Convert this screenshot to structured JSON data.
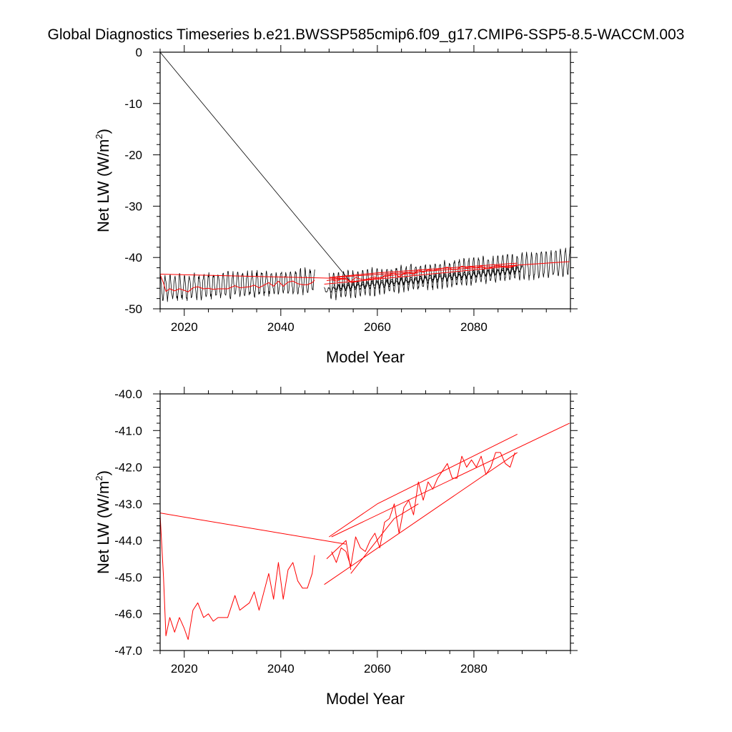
{
  "title": "Global Diagnostics Timeseries b.e21.BWSSP585cmip6.f09_g17.CMIP6-SSP5-8.5-WACCM.003",
  "chart_data": [
    {
      "type": "line",
      "title": "Global Diagnostics Timeseries b.e21.BWSSP585cmip6.f09_g17.CMIP6-SSP5-8.5-WACCM.003",
      "xlabel": "Model Year",
      "ylabel_main": "Net LW (W/m",
      "ylabel_sup": "2",
      "ylabel_end": ")",
      "xlim": [
        2015,
        2100
      ],
      "ylim": [
        -50,
        0
      ],
      "xticks": [
        2020,
        2040,
        2060,
        2080
      ],
      "xtick_labels": [
        "2020",
        "2040",
        "2060",
        "2080"
      ],
      "yticks": [
        0,
        -10,
        -20,
        -30,
        -40,
        -50
      ],
      "ytick_labels": [
        "0",
        "-10",
        "-20",
        "-30",
        "-40",
        "-50"
      ],
      "series": [
        {
          "name": "monthly",
          "color": "#000000",
          "segments": [
            {
              "kind": "seasonal",
              "x0": 2015.1,
              "x1": 2047.0,
              "mean0": -46.0,
              "mean1": -44.6,
              "amp": 2.2,
              "noise": 0.6
            },
            {
              "kind": "line",
              "x": [
                2015.0,
                2054.5
              ],
              "y": [
                0.0,
                -44.8
              ]
            },
            {
              "kind": "seasonal",
              "x0": 2050.0,
              "x1": 2099.9,
              "mean0": -45.6,
              "mean1": -40.8,
              "amp": 2.4,
              "noise": 0.5
            },
            {
              "kind": "seasonal",
              "x0": 2049.0,
              "x1": 2089.0,
              "mean0": -46.4,
              "mean1": -42.6,
              "amp": 0.5,
              "noise": 0.2
            },
            {
              "kind": "seasonal",
              "x0": 2051.0,
              "x1": 2090.0,
              "mean0": -45.8,
              "mean1": -42.2,
              "amp": 0.5,
              "noise": 0.2
            }
          ]
        },
        {
          "name": "annual",
          "color": "#ff0000",
          "segments": [
            {
              "kind": "line",
              "x": [
                2015.0,
                2015.7,
                2016.2,
                2017.0,
                2018.0,
                2019.0,
                2020.0,
                2020.8,
                2021.8,
                2022.8,
                2024.0,
                2025.0,
                2026.0,
                2027.0,
                2028.0,
                2029.0,
                2030.5,
                2031.5,
                2032.5,
                2033.5,
                2034.5,
                2035.5,
                2036.5,
                2037.5,
                2038.5,
                2039.5,
                2040.5,
                2041.5,
                2042.5,
                2043.5,
                2044.5,
                2045.5,
                2046.5,
                2047.0
              ],
              "y": [
                -43.3,
                -45.0,
                -46.6,
                -46.1,
                -46.5,
                -46.1,
                -46.4,
                -46.7,
                -45.9,
                -45.7,
                -46.1,
                -46.0,
                -46.2,
                -46.1,
                -46.1,
                -46.1,
                -45.5,
                -45.9,
                -45.8,
                -45.7,
                -45.4,
                -45.9,
                -45.4,
                -44.9,
                -45.6,
                -44.6,
                -45.6,
                -44.8,
                -44.6,
                -45.1,
                -45.3,
                -45.3,
                -44.9,
                -44.4
              ]
            },
            {
              "kind": "line",
              "x": [
                2015.0,
                2053.5
              ],
              "y": [
                -43.25,
                -44.1
              ]
            },
            {
              "kind": "line",
              "x": [
                2050.5,
                2051.5,
                2052.5,
                2053.5,
                2054.5,
                2055.5,
                2056.5,
                2057.5,
                2058.5,
                2059.5,
                2060.5,
                2061.5,
                2062.5,
                2063.5,
                2064.5,
                2065.5,
                2066.5,
                2067.5,
                2068.5,
                2069.5,
                2070.5,
                2071.5,
                2072.5,
                2073.5,
                2074.5,
                2075.5,
                2076.5,
                2077.5,
                2078.5,
                2079.5,
                2080.5,
                2081.5,
                2082.5,
                2083.5,
                2084.5,
                2085.5,
                2086.5,
                2087.5,
                2088.5
              ],
              "y": [
                -44.3,
                -44.6,
                -44.2,
                -44.3,
                -44.7,
                -43.9,
                -44.2,
                -44.3,
                -44.0,
                -43.8,
                -44.2,
                -43.5,
                -43.4,
                -43.0,
                -43.8,
                -43.1,
                -42.9,
                -43.3,
                -42.4,
                -42.9,
                -42.4,
                -42.6,
                -42.3,
                -42.1,
                -41.9,
                -42.3,
                -42.3,
                -41.7,
                -42.0,
                -41.8,
                -42.0,
                -41.7,
                -42.2,
                -42.0,
                -41.6,
                -41.6,
                -41.9,
                -42.0,
                -41.6
              ]
            },
            {
              "kind": "line",
              "x": [
                2049.5,
                2053.5,
                2054.5
              ],
              "y": [
                -44.5,
                -44.0,
                -44.8
              ]
            },
            {
              "kind": "line",
              "x": [
                2054.5,
                2063.5,
                2068.5
              ],
              "y": [
                -44.9,
                -43.4,
                -43.0
              ]
            },
            {
              "kind": "line",
              "x": [
                2050.0,
                2060.0,
                2089.0
              ],
              "y": [
                -43.9,
                -43.0,
                -41.1
              ]
            },
            {
              "kind": "line",
              "x": [
                2049.0,
                2089.0
              ],
              "y": [
                -45.2,
                -41.6
              ]
            },
            {
              "kind": "line",
              "x": [
                2050.5,
                2099.8
              ],
              "y": [
                -43.9,
                -40.8
              ]
            }
          ]
        }
      ]
    },
    {
      "type": "line",
      "title": "",
      "xlabel": "Model Year",
      "ylabel_main": "Net LW (W/m",
      "ylabel_sup": "2",
      "ylabel_end": ")",
      "xlim": [
        2015,
        2100
      ],
      "ylim": [
        -47,
        -40
      ],
      "xticks": [
        2020,
        2040,
        2060,
        2080
      ],
      "xtick_labels": [
        "2020",
        "2040",
        "2060",
        "2080"
      ],
      "yticks": [
        -40,
        -41,
        -42,
        -43,
        -44,
        -45,
        -46,
        -47
      ],
      "ytick_labels": [
        "-40.0",
        "-41.0",
        "-42.0",
        "-43.0",
        "-44.0",
        "-45.0",
        "-46.0",
        "-47.0"
      ],
      "series": [
        {
          "name": "annual",
          "color": "#ff0000",
          "segments": [
            {
              "kind": "line",
              "x": [
                2015.0,
                2015.7,
                2016.2,
                2017.0,
                2018.0,
                2019.0,
                2020.0,
                2020.8,
                2021.8,
                2022.8,
                2024.0,
                2025.0,
                2026.0,
                2027.0,
                2028.0,
                2029.0,
                2030.5,
                2031.5,
                2032.5,
                2033.5,
                2034.5,
                2035.5,
                2036.5,
                2037.5,
                2038.5,
                2039.5,
                2040.5,
                2041.5,
                2042.5,
                2043.5,
                2044.5,
                2045.5,
                2046.5,
                2047.0
              ],
              "y": [
                -43.3,
                -45.0,
                -46.6,
                -46.1,
                -46.5,
                -46.1,
                -46.4,
                -46.7,
                -45.9,
                -45.7,
                -46.1,
                -46.0,
                -46.2,
                -46.1,
                -46.1,
                -46.1,
                -45.5,
                -45.9,
                -45.8,
                -45.7,
                -45.4,
                -45.9,
                -45.4,
                -44.9,
                -45.6,
                -44.6,
                -45.6,
                -44.8,
                -44.6,
                -45.1,
                -45.3,
                -45.3,
                -44.9,
                -44.4
              ]
            },
            {
              "kind": "line",
              "x": [
                2015.0,
                2053.5
              ],
              "y": [
                -43.25,
                -44.1
              ]
            },
            {
              "kind": "line",
              "x": [
                2050.5,
                2051.5,
                2052.5,
                2053.5,
                2054.5,
                2055.5,
                2056.5,
                2057.5,
                2058.5,
                2059.5,
                2060.5,
                2061.5,
                2062.5,
                2063.5,
                2064.5,
                2065.5,
                2066.5,
                2067.5,
                2068.5,
                2069.5,
                2070.5,
                2071.5,
                2072.5,
                2073.5,
                2074.5,
                2075.5,
                2076.5,
                2077.5,
                2078.5,
                2079.5,
                2080.5,
                2081.5,
                2082.5,
                2083.5,
                2084.5,
                2085.5,
                2086.5,
                2087.5,
                2088.5
              ],
              "y": [
                -44.3,
                -44.6,
                -44.2,
                -44.3,
                -44.7,
                -43.9,
                -44.2,
                -44.3,
                -44.0,
                -43.8,
                -44.2,
                -43.5,
                -43.4,
                -43.0,
                -43.8,
                -43.1,
                -42.9,
                -43.3,
                -42.4,
                -42.9,
                -42.4,
                -42.6,
                -42.3,
                -42.1,
                -41.9,
                -42.3,
                -42.3,
                -41.7,
                -42.0,
                -41.8,
                -42.0,
                -41.7,
                -42.2,
                -42.0,
                -41.6,
                -41.6,
                -41.9,
                -42.0,
                -41.6
              ]
            },
            {
              "kind": "line",
              "x": [
                2049.5,
                2053.5,
                2054.5
              ],
              "y": [
                -44.5,
                -44.0,
                -44.8
              ]
            },
            {
              "kind": "line",
              "x": [
                2054.5,
                2063.5,
                2068.5
              ],
              "y": [
                -44.9,
                -43.4,
                -43.0
              ]
            },
            {
              "kind": "line",
              "x": [
                2050.0,
                2060.0,
                2089.0
              ],
              "y": [
                -43.9,
                -43.0,
                -41.1
              ]
            },
            {
              "kind": "line",
              "x": [
                2049.0,
                2089.0
              ],
              "y": [
                -45.2,
                -41.6
              ]
            },
            {
              "kind": "line",
              "x": [
                2050.5,
                2099.8
              ],
              "y": [
                -43.9,
                -40.8
              ]
            }
          ]
        }
      ]
    }
  ]
}
